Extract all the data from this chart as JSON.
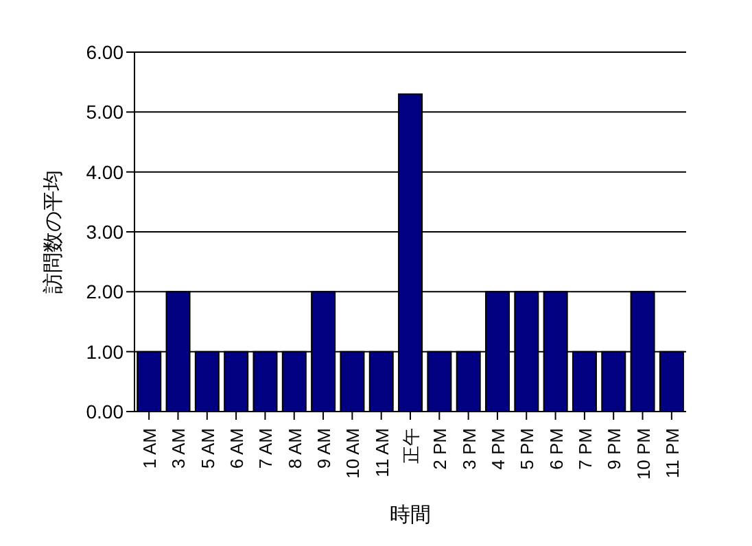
{
  "chart_data": {
    "type": "bar",
    "xlabel": "時間",
    "ylabel": "訪問数の平均",
    "categories": [
      "1 AM",
      "3 AM",
      "5 AM",
      "6 AM",
      "7 AM",
      "8 AM",
      "9 AM",
      "10 AM",
      "11 AM",
      "正午",
      "2 PM",
      "3 PM",
      "4 PM",
      "5 PM",
      "6 PM",
      "7 PM",
      "9 PM",
      "10 PM",
      "11 PM"
    ],
    "values": [
      1,
      2,
      1,
      1,
      1,
      1,
      2,
      1,
      1,
      5.3,
      1,
      1,
      2,
      2,
      2,
      1,
      1,
      2,
      1
    ],
    "color": "#000080",
    "ylim": [
      0,
      6
    ],
    "yticks": [
      {
        "value": 0,
        "label": "0.00"
      },
      {
        "value": 1,
        "label": "1.00"
      },
      {
        "value": 2,
        "label": "2.00"
      },
      {
        "value": 3,
        "label": "3.00"
      },
      {
        "value": 4,
        "label": "4.00"
      },
      {
        "value": 5,
        "label": "5.00"
      },
      {
        "value": 6,
        "label": "6.00"
      }
    ],
    "grid": "y"
  }
}
